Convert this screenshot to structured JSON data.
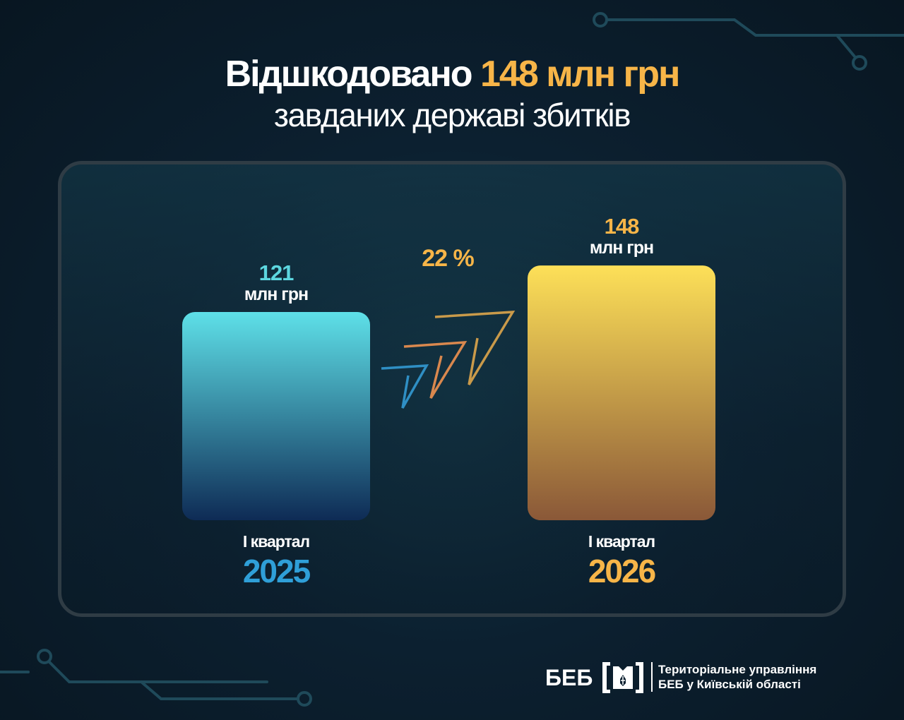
{
  "title": {
    "prefix": "Відшкодовано",
    "highlight": "148 млн грн",
    "line2": "завданих державі збитків"
  },
  "chart_data": {
    "type": "bar",
    "categories": [
      "2025",
      "2026"
    ],
    "category_labels": [
      "І квартал",
      "І квартал"
    ],
    "values": [
      121,
      148
    ],
    "value_labels": [
      "121",
      "148"
    ],
    "unit": "млн грн",
    "growth_label": "22 %",
    "bar_colors": [
      [
        "#5ee0e8",
        "#0e2b55"
      ],
      [
        "#fde058",
        "#8a5838"
      ]
    ],
    "value_colors": [
      "#5dd7e0",
      "#f7b548"
    ],
    "year_colors": [
      "#2f9fd8",
      "#f7b548"
    ],
    "ylim": [
      0,
      160
    ],
    "grid": false,
    "legend": "none"
  },
  "footer": {
    "abbr": "БЕБ",
    "org_line1": "Територіальне управління",
    "org_line2": "БЕБ у Київській області"
  },
  "colors": {
    "accent_orange": "#f7b548",
    "accent_cyan": "#5dd7e0",
    "background": "#0c2030"
  }
}
